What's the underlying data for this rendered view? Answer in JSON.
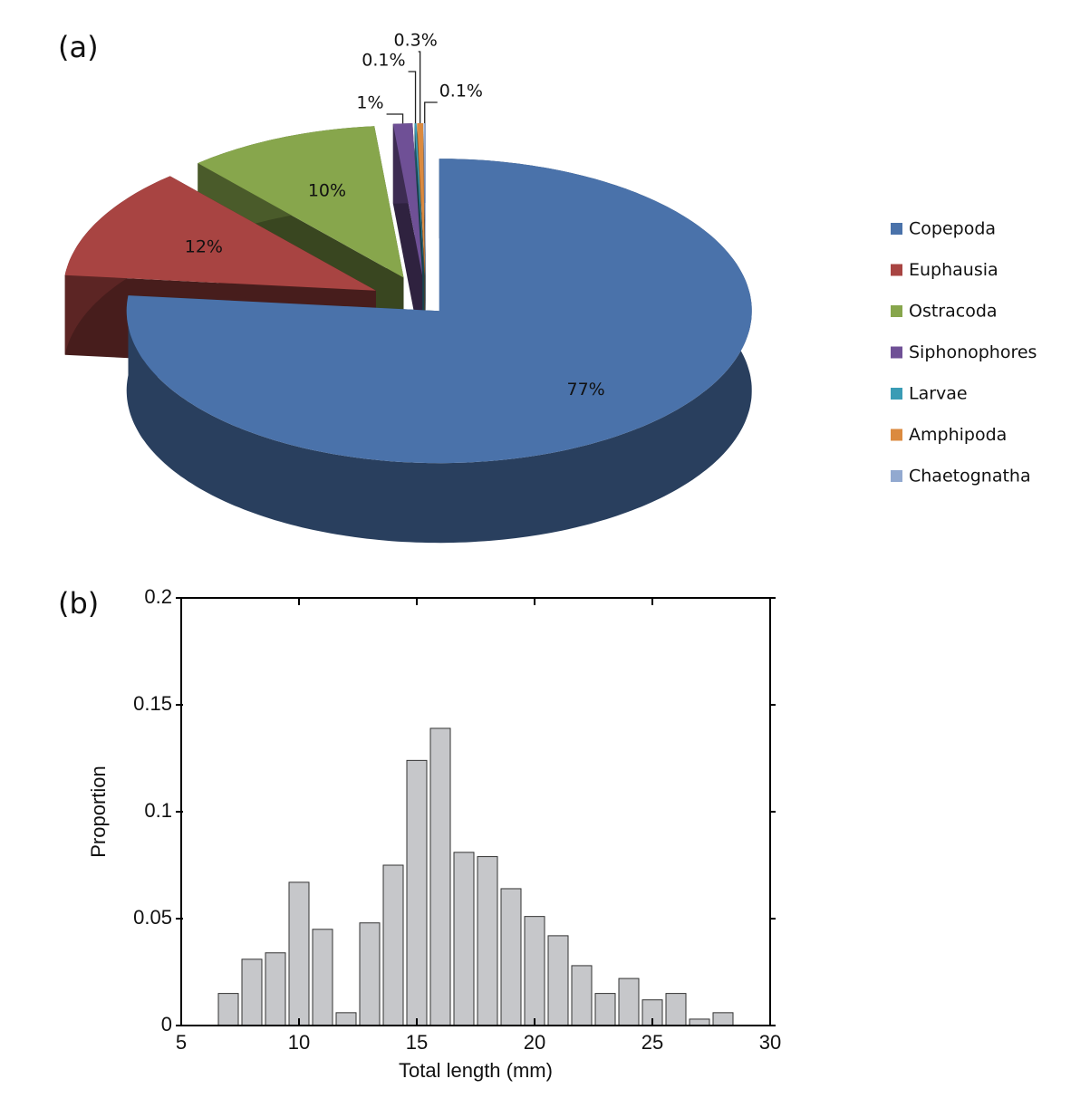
{
  "chart_data": [
    {
      "type": "pie",
      "panel_label": "(a)",
      "categories": [
        "Copepoda",
        "Euphausia",
        "Ostracoda",
        "Siphonophores",
        "Larvae",
        "Amphipoda",
        "Chaetognatha"
      ],
      "values": [
        77,
        12,
        10,
        1,
        0.1,
        0.3,
        0.1
      ],
      "value_labels": [
        "77%",
        "12%",
        "10%",
        "1%",
        "0.1%",
        "0.3%",
        "0.1%"
      ],
      "colors": [
        "#4a72aa",
        "#a84442",
        "#87a64c",
        "#6f5096",
        "#3a9cb5",
        "#db8a3f",
        "#92a9d0"
      ],
      "legend": "right"
    },
    {
      "type": "histogram",
      "panel_label": "(b)",
      "xlabel": "Total length (mm)",
      "ylabel": "Proportion",
      "bins": [
        6.5,
        7.5,
        8.5,
        9.5,
        10.5,
        11.5,
        12.5,
        13.5,
        14.5,
        15.5,
        16.5,
        17.5,
        18.5,
        19.5,
        20.5,
        21.5,
        22.5,
        23.5,
        24.5,
        25.5,
        26.5,
        27.5,
        28.5
      ],
      "values": [
        0.015,
        0.031,
        0.034,
        0.067,
        0.045,
        0.006,
        0.048,
        0.075,
        0.124,
        0.139,
        0.081,
        0.079,
        0.064,
        0.051,
        0.042,
        0.028,
        0.015,
        0.022,
        0.012,
        0.015,
        0.003,
        0.006
      ],
      "color": "#c6c7ca",
      "xlim": [
        5,
        30
      ],
      "xticks": [
        5,
        10,
        15,
        20,
        25,
        30
      ],
      "ylim": [
        0,
        0.2
      ],
      "yticks": [
        0,
        0.05,
        0.1,
        0.15,
        0.2
      ]
    }
  ]
}
